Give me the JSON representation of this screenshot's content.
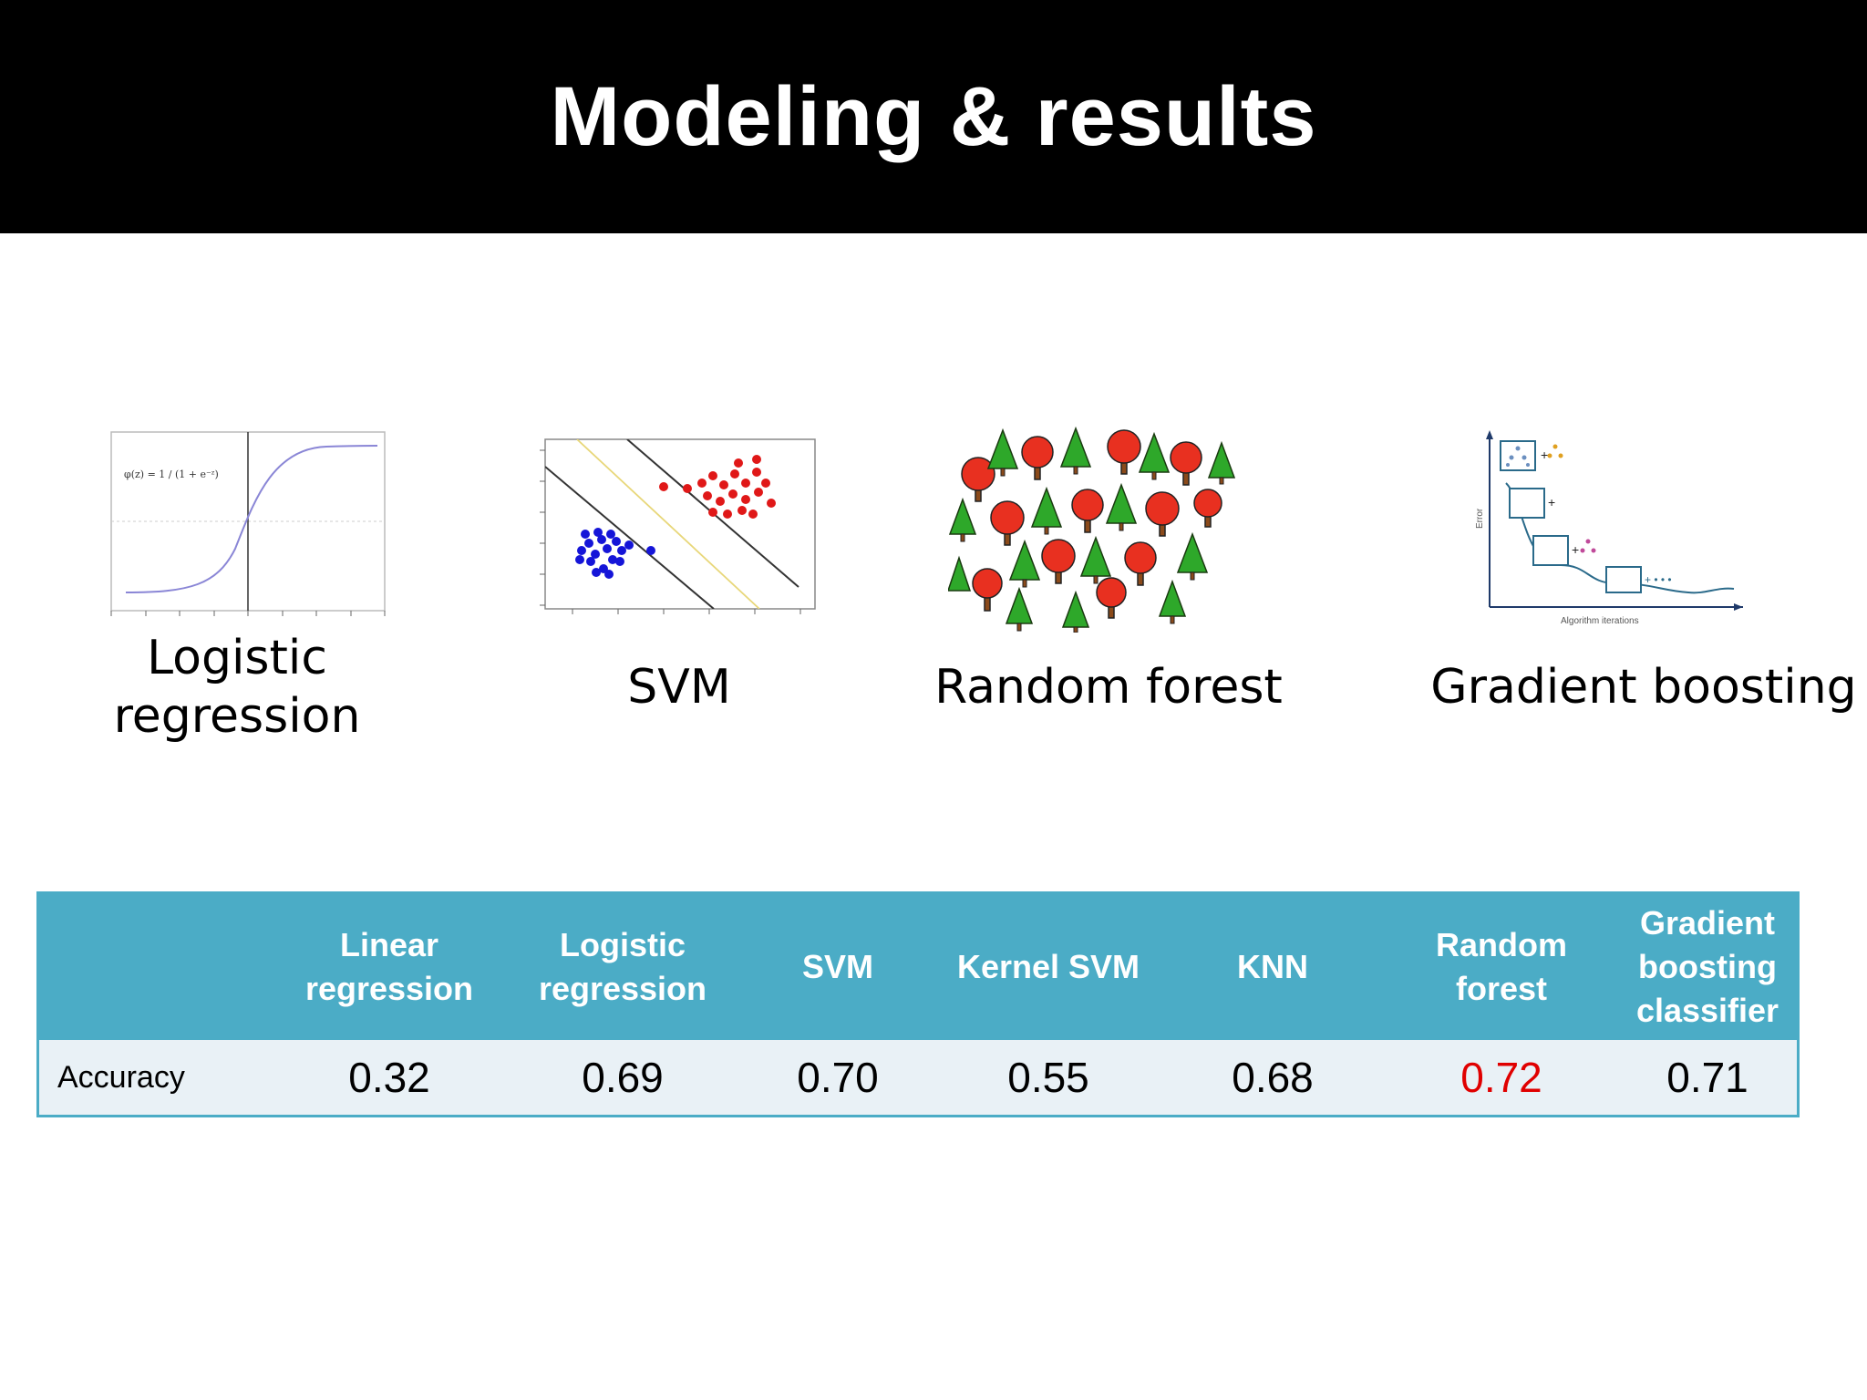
{
  "slide": {
    "title": "Modeling & results"
  },
  "models": [
    {
      "caption_lines": [
        "Logistic",
        "regression"
      ],
      "icon": "sigmoid-plot-icon"
    },
    {
      "caption_lines": [
        "SVM"
      ],
      "icon": "svm-scatter-icon"
    },
    {
      "caption_lines": [
        "Random forest"
      ],
      "icon": "forest-illustration-icon"
    },
    {
      "caption_lines": [
        "Gradient boosting"
      ],
      "icon": "boosting-diagram-icon"
    }
  ],
  "sigmoid_plot": {
    "formula": "φ(z) = 1 / (1 + e⁻ᶻ)"
  },
  "boosting_plot": {
    "ylabel": "Error",
    "xlabel": "Algorithm iterations"
  },
  "table": {
    "headers": [
      "",
      "Linear regression",
      "Logistic regression",
      "SVM",
      "Kernel SVM",
      "KNN",
      "Random forest",
      "Gradient boosting classifier"
    ],
    "row_label": "Accuracy",
    "values": [
      "0.32",
      "0.69",
      "0.70",
      "0.55",
      "0.68",
      "0.72",
      "0.71"
    ],
    "highlight_index": 5,
    "colors": {
      "header_bg": "#4bacc6",
      "row_bg": "#e9f1f6",
      "highlight": "#e00000"
    }
  }
}
